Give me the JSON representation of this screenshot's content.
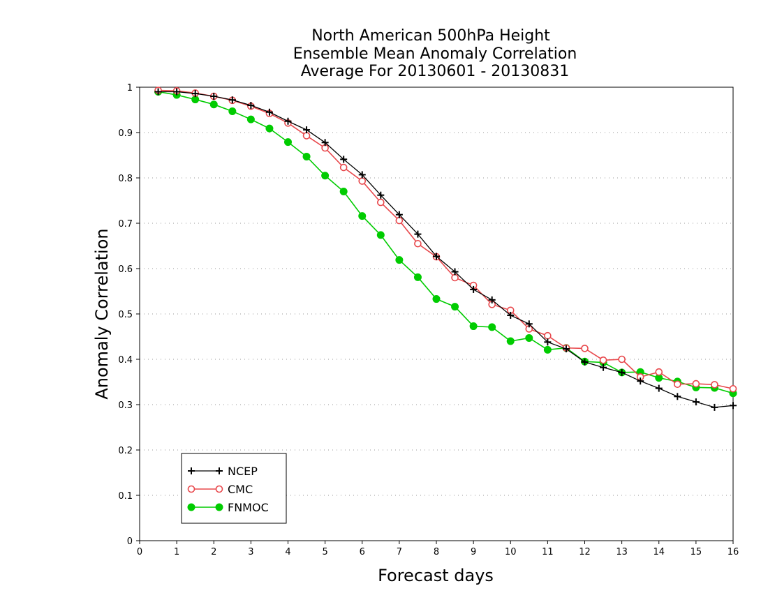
{
  "chart_data": {
    "type": "line",
    "title": [
      "North American 500hPa Height",
      "Ensemble Mean Anomaly Correlation",
      "Average For 20130601 - 20130831"
    ],
    "xlabel": "Forecast days",
    "ylabel": "Anomaly Correlation",
    "xlim": [
      0,
      16
    ],
    "ylim": [
      0,
      1
    ],
    "x_ticks": [
      "0",
      "1",
      "2",
      "3",
      "4",
      "5",
      "6",
      "7",
      "8",
      "9",
      "10",
      "11",
      "12",
      "13",
      "14",
      "15",
      "16"
    ],
    "y_ticks": [
      "0",
      "0.1",
      "0.2",
      "0.3",
      "0.4",
      "0.5",
      "0.6",
      "0.7",
      "0.8",
      "0.9",
      "1"
    ],
    "grid": "horizontal dotted",
    "legend_position": "bottom-left",
    "x": [
      0.5,
      1,
      1.5,
      2,
      2.5,
      3,
      3.5,
      4,
      4.5,
      5,
      5.5,
      6,
      6.5,
      7,
      7.5,
      8,
      8.5,
      9,
      9.5,
      10,
      10.5,
      11,
      11.5,
      12,
      12.5,
      13,
      13.5,
      14,
      14.5,
      15,
      15.5,
      16
    ],
    "series": [
      {
        "name": "NCEP",
        "color": "#000000",
        "marker": "plus",
        "values": [
          0.99,
          0.99,
          0.986,
          0.98,
          0.972,
          0.96,
          0.945,
          0.925,
          0.906,
          0.878,
          0.841,
          0.807,
          0.762,
          0.719,
          0.676,
          0.627,
          0.593,
          0.554,
          0.531,
          0.497,
          0.478,
          0.438,
          0.423,
          0.394,
          0.382,
          0.371,
          0.352,
          0.336,
          0.318,
          0.306,
          0.294,
          0.298
        ]
      },
      {
        "name": "CMC",
        "color": "#e8484c",
        "marker": "open-circle",
        "values": [
          0.993,
          0.992,
          0.987,
          0.98,
          0.971,
          0.958,
          0.942,
          0.921,
          0.893,
          0.866,
          0.823,
          0.793,
          0.746,
          0.706,
          0.655,
          0.626,
          0.58,
          0.563,
          0.521,
          0.508,
          0.467,
          0.452,
          0.425,
          0.424,
          0.398,
          0.4,
          0.361,
          0.372,
          0.345,
          0.346,
          0.344,
          0.335
        ]
      },
      {
        "name": "FNMOC",
        "color": "#00cc00",
        "marker": "filled-circle",
        "values": [
          0.99,
          0.983,
          0.973,
          0.962,
          0.947,
          0.929,
          0.909,
          0.879,
          0.847,
          0.805,
          0.77,
          0.716,
          0.674,
          0.619,
          0.581,
          0.533,
          0.516,
          0.473,
          0.471,
          0.44,
          0.447,
          0.421,
          0.425,
          0.395,
          0.393,
          0.371,
          0.372,
          0.359,
          0.351,
          0.338,
          0.337,
          0.325
        ]
      }
    ]
  }
}
